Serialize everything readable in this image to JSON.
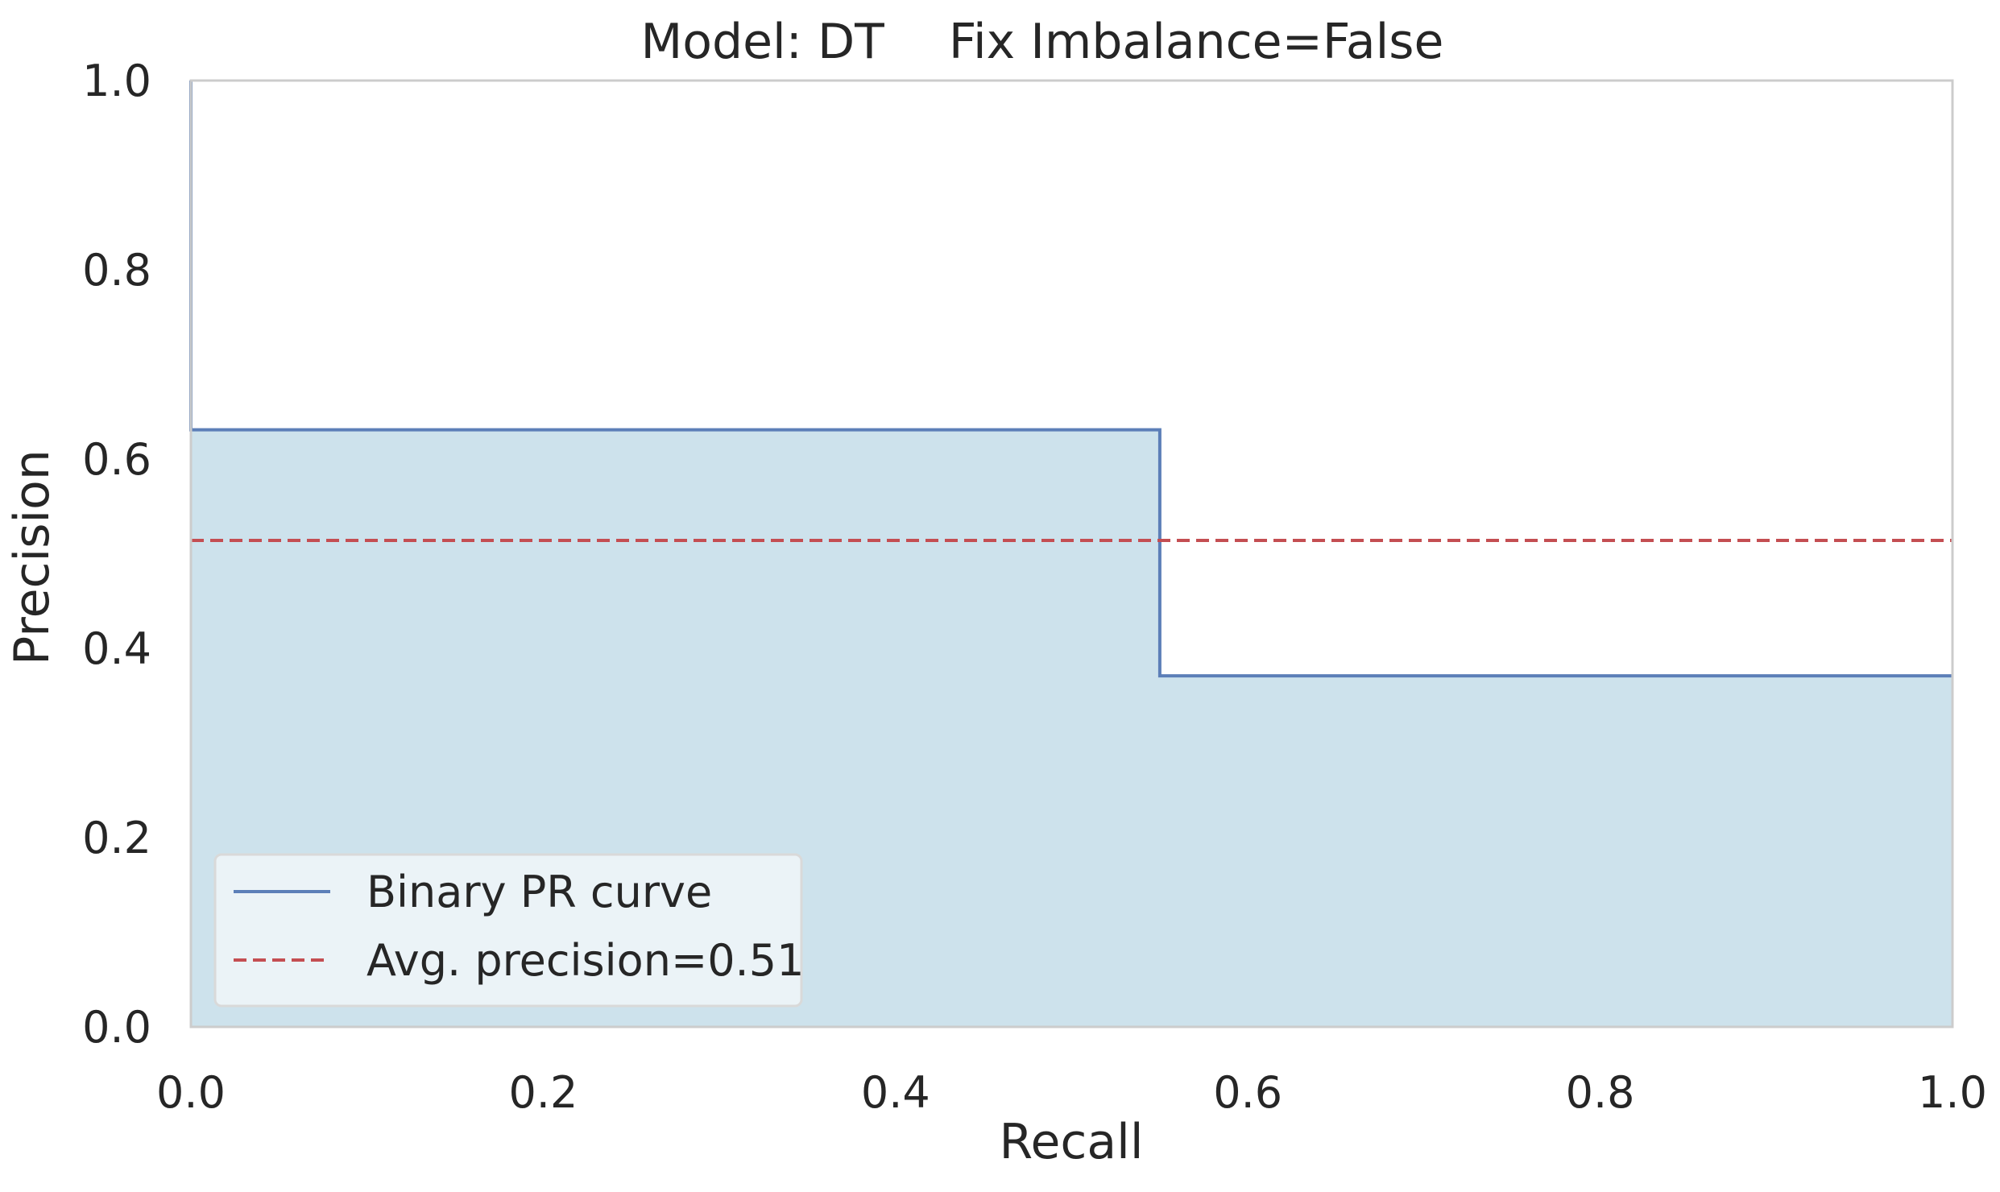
{
  "chart_data": {
    "type": "area",
    "title_model": "Model: DT",
    "title_setting": "Fix Imbalance=False",
    "xlabel": "Recall",
    "ylabel": "Precision",
    "xlim": [
      0.0,
      1.0
    ],
    "ylim": [
      0.0,
      1.0
    ],
    "xticks": [
      "0.0",
      "0.2",
      "0.4",
      "0.6",
      "0.8",
      "1.0"
    ],
    "yticks": [
      "0.0",
      "0.2",
      "0.4",
      "0.6",
      "0.8",
      "1.0"
    ],
    "grid": false,
    "legend_position": "lower-left",
    "series": [
      {
        "name": "Binary PR curve",
        "style": "solid-step",
        "color": "#5c7fb8",
        "fill_color": "#cde2ec",
        "points": [
          {
            "x": 0.0,
            "y": 1.0
          },
          {
            "x": 0.0,
            "y": 0.631
          },
          {
            "x": 0.55,
            "y": 0.631
          },
          {
            "x": 0.55,
            "y": 0.371
          },
          {
            "x": 1.0,
            "y": 0.371
          }
        ]
      },
      {
        "name": "Avg. precision=0.51",
        "style": "dashed",
        "color": "#c44e52",
        "y": 0.514
      }
    ],
    "colors": {
      "axes_edge": "#cccccc",
      "text": "#262626",
      "legend_background": "#f2f8fa",
      "legend_border": "#d9d9d9"
    }
  }
}
